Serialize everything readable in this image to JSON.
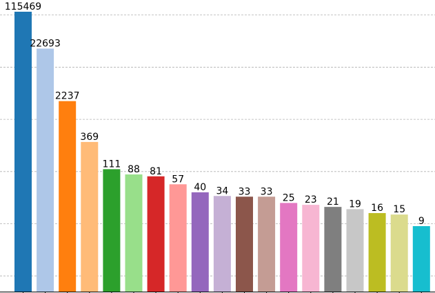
{
  "chart_data": {
    "type": "bar",
    "scale": "log",
    "ylim": [
      0.5,
      115469
    ],
    "grid": true,
    "values": [
      115469,
      22693,
      2237,
      369,
      111,
      88,
      81,
      57,
      40,
      34,
      33,
      33,
      25,
      23,
      21,
      19,
      16,
      15,
      9
    ],
    "labels": [
      "115469",
      "22693",
      "2237",
      "369",
      "111",
      "88",
      "81",
      "57",
      "40",
      "34",
      "33",
      "33",
      "25",
      "23",
      "21",
      "19",
      "16",
      "15",
      "9"
    ],
    "colors": [
      "#1f77b4",
      "#aec7e8",
      "#ff7f0e",
      "#ffbb78",
      "#2ca02c",
      "#98df8a",
      "#d62728",
      "#ff9896",
      "#9467bd",
      "#c5b0d5",
      "#8c564b",
      "#c49c94",
      "#e377c2",
      "#f7b6d2",
      "#7f7f7f",
      "#c7c7c7",
      "#bcbd22",
      "#dbdb8d",
      "#17becf"
    ]
  }
}
